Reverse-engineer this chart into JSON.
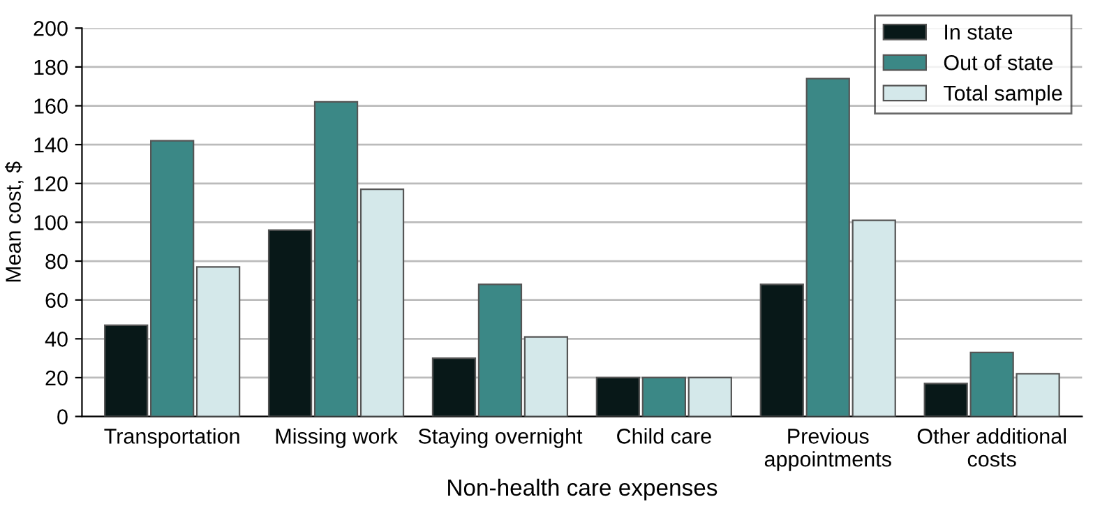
{
  "chart_data": {
    "type": "bar",
    "xlabel": "Non-health care expenses",
    "ylabel": "Mean cost, $",
    "categories": [
      "Transportation",
      "Missing work",
      "Staying overnight",
      "Child care",
      "Previous\nappointments",
      "Other additional\ncosts"
    ],
    "series": [
      {
        "name": "In state",
        "color": "#081818",
        "values": [
          47,
          96,
          30,
          20,
          68,
          17
        ]
      },
      {
        "name": "Out of state",
        "color": "#3b8886",
        "values": [
          142,
          162,
          68,
          20,
          174,
          33
        ]
      },
      {
        "name": "Total sample",
        "color": "#d4e8ea",
        "values": [
          77,
          117,
          41,
          20,
          101,
          22
        ]
      }
    ],
    "ylim": [
      0,
      200
    ],
    "yticks": [
      0,
      20,
      40,
      60,
      80,
      100,
      120,
      140,
      160,
      180,
      200
    ],
    "grid": "y",
    "legend": "top right"
  }
}
